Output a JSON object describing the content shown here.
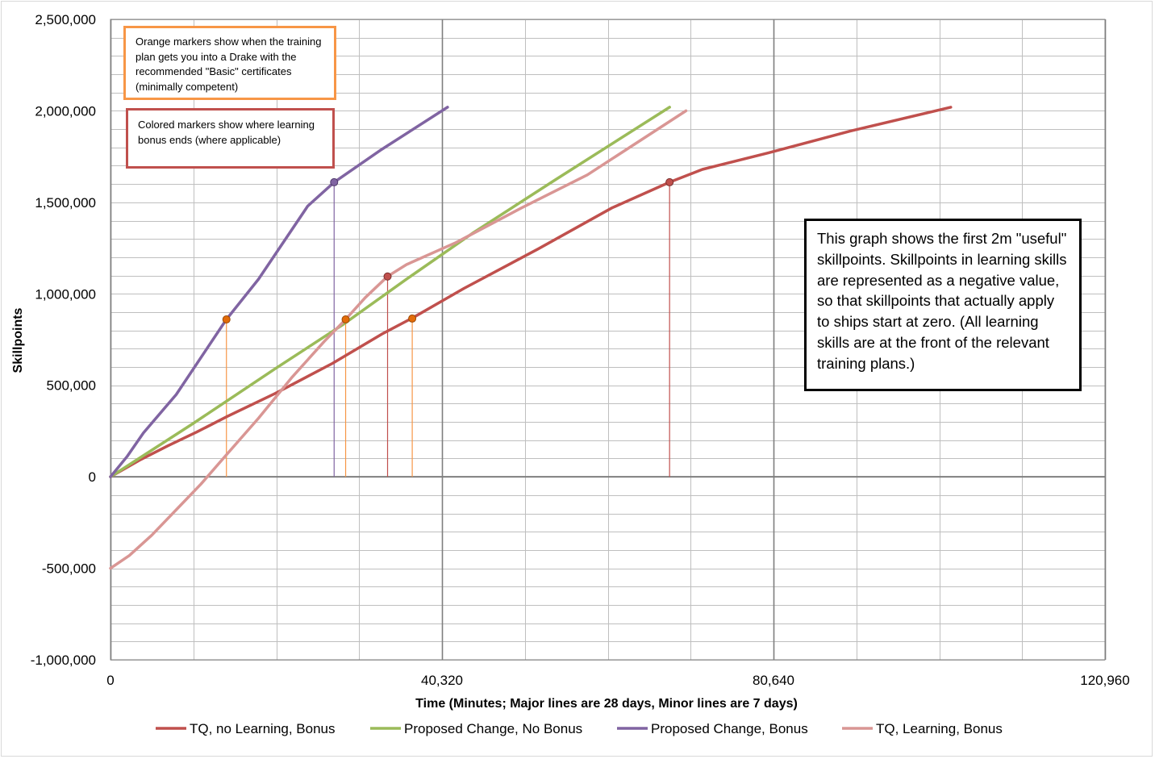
{
  "chart_data": {
    "type": "line",
    "title": "",
    "xlabel": "Time (Minutes; Major lines are 28 days, Minor lines are 7 days)",
    "ylabel": "Skillpoints",
    "xlim": [
      0,
      120960
    ],
    "ylim": [
      -1000000,
      2500000
    ],
    "x_ticks": [
      0,
      40320,
      80640,
      120960
    ],
    "x_tick_labels": [
      "0",
      "40,320",
      "80,640",
      "120,960"
    ],
    "y_ticks": [
      -1000000,
      -500000,
      0,
      500000,
      1000000,
      1500000,
      2000000,
      2500000
    ],
    "y_tick_labels": [
      "-1,000,000",
      "-500,000",
      "0",
      "500,000",
      "1,000,000",
      "1,500,000",
      "2,000,000",
      "2,500,000"
    ],
    "x_major_step": 40320,
    "x_minor_step": 10080,
    "y_minor_step": 100000,
    "grid": true,
    "legend_position": "bottom",
    "series": [
      {
        "name": "TQ, no Learning, Bonus",
        "color": "#c0504d",
        "x": [
          0,
          3500,
          7000,
          10500,
          14200,
          20000,
          27000,
          33000,
          36800,
          43000,
          52000,
          61000,
          68000,
          72000,
          80000,
          90000,
          102200
        ],
        "y": [
          0,
          90000,
          170000,
          245000,
          330000,
          455000,
          620000,
          780000,
          870000,
          1030000,
          1245000,
          1470000,
          1610000,
          1680000,
          1770000,
          1890000,
          2020000
        ],
        "markers": [
          {
            "x": 33700,
            "y": 1095000
          },
          {
            "x": 68000,
            "y": 1610000
          }
        ]
      },
      {
        "name": "Proposed Change, No Bonus",
        "color": "#9bbb59",
        "x": [
          0,
          10000,
          20000,
          28200,
          36000,
          44000,
          54000,
          68000
        ],
        "y": [
          0,
          290000,
          590000,
          830000,
          1080000,
          1330000,
          1620000,
          2020000
        ],
        "markers": []
      },
      {
        "name": "Proposed Change, Bonus",
        "color": "#8064a2",
        "x": [
          0,
          2000,
          4000,
          8000,
          14100,
          18000,
          24000,
          27200,
          33000,
          41000
        ],
        "y": [
          0,
          110000,
          240000,
          450000,
          860000,
          1080000,
          1480000,
          1610000,
          1790000,
          2020000
        ],
        "markers": [
          {
            "x": 27200,
            "y": 1610000
          }
        ]
      },
      {
        "name": "TQ, Learning, Bonus",
        "color": "#d99694",
        "x": [
          0,
          2300,
          5000,
          8000,
          11000,
          14100,
          18000,
          22000,
          26000,
          28600,
          31000,
          33700,
          36000,
          42000,
          50000,
          58000,
          70000
        ],
        "y": [
          -500000,
          -430000,
          -320000,
          -180000,
          -40000,
          120000,
          320000,
          540000,
          740000,
          860000,
          980000,
          1095000,
          1160000,
          1280000,
          1470000,
          1650000,
          2000000
        ],
        "markers": []
      }
    ],
    "drake_markers": {
      "color": "#e36c09",
      "points": [
        {
          "x": 14100,
          "y": 860000
        },
        {
          "x": 28600,
          "y": 860000
        },
        {
          "x": 36700,
          "y": 865000
        }
      ]
    },
    "drop_lines": [
      {
        "x": 14100,
        "y": 860000,
        "color": "#f79646"
      },
      {
        "x": 27200,
        "y": 1610000,
        "color": "#8064a2"
      },
      {
        "x": 28600,
        "y": 860000,
        "color": "#f79646"
      },
      {
        "x": 33700,
        "y": 1095000,
        "color": "#c0504d"
      },
      {
        "x": 36700,
        "y": 865000,
        "color": "#f79646"
      },
      {
        "x": 68000,
        "y": 1610000,
        "color": "#c0504d"
      }
    ]
  },
  "notes": {
    "orange": "Orange markers show when the training plan gets you into a Drake with the recommended \"Basic\" certificates (minimally competent)",
    "colored": "Colored markers show where learning bonus ends (where applicable)",
    "main": "This graph shows the first 2m \"useful\" skillpoints. Skillpoints in learning skills are represented as a negative value, so that skillpoints that actually apply to ships start at zero. (All learning skills are at the front of the relevant training plans.)"
  }
}
